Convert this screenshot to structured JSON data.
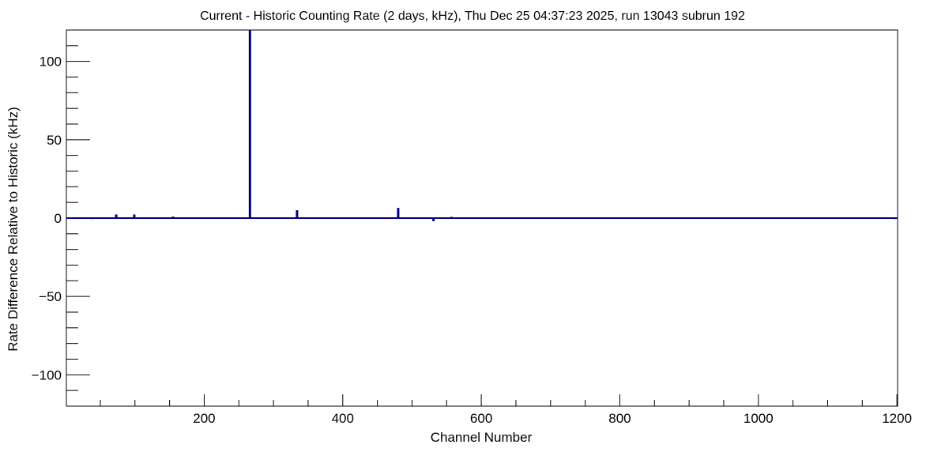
{
  "chart_data": {
    "type": "bar",
    "title": "Current - Historic Counting Rate (2 days, kHz), Thu Dec 25 04:37:23 2025, run 13043 subrun 192",
    "xlabel": "Channel Number",
    "ylabel": "Rate Difference Relative to Historic (kHz)",
    "xlim": [
      1,
      1201
    ],
    "ylim": [
      -120,
      120
    ],
    "x_ticks": [
      200,
      400,
      600,
      800,
      1000,
      1200
    ],
    "x_tick_labels": [
      "200",
      "400",
      "600",
      "800",
      "1000",
      "1200"
    ],
    "y_ticks": [
      -100,
      -50,
      0,
      50,
      100
    ],
    "y_tick_labels": [
      "−100",
      "−50",
      "0",
      "50",
      "100"
    ],
    "grid": false,
    "color": "#000080",
    "series": [
      {
        "x": [
          38,
          73,
          99,
          155,
          166,
          218,
          229,
          266,
          302,
          334,
          443,
          480,
          531,
          547,
          557,
          692,
          762,
          848,
          893,
          906,
          985,
          1040,
          1099,
          1145,
          1168,
          1197
        ],
        "values": [
          -0.6,
          2.3,
          2.3,
          1.0,
          -0.4,
          -0.4,
          -0.4,
          120,
          -0.5,
          5.0,
          -0.5,
          6.5,
          -2.0,
          -0.4,
          0.8,
          -0.5,
          -0.5,
          -0.4,
          -0.5,
          -0.5,
          -0.5,
          -0.5,
          -0.4,
          -0.5,
          -0.4,
          -0.6
        ]
      }
    ]
  }
}
